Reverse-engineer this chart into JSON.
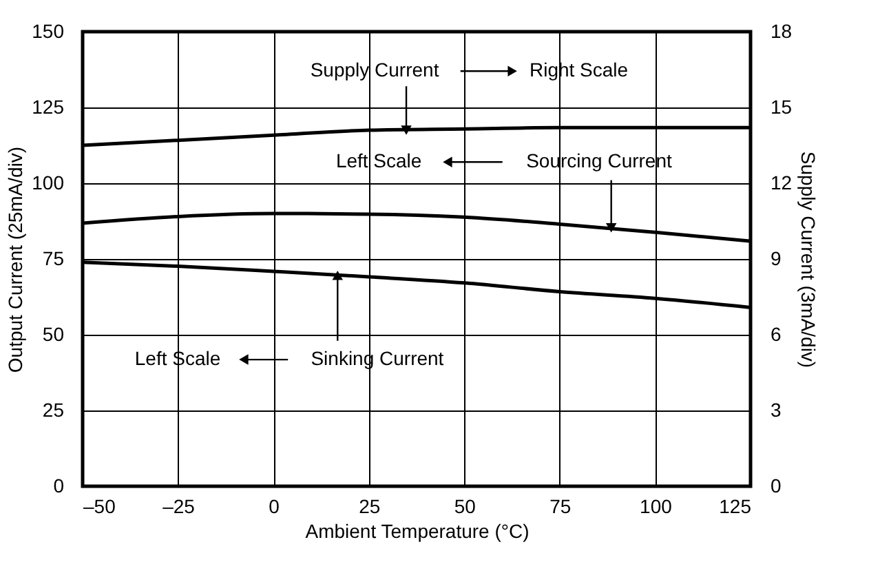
{
  "chart_data": {
    "type": "line",
    "xlabel": "Ambient Temperature (°C)",
    "ylabel": "Output Current (25mA/div)",
    "y2label": "Supply Current (3mA/div)",
    "x": [
      -50,
      -25,
      0,
      25,
      50,
      75,
      100,
      125
    ],
    "series": [
      {
        "color": "#000000",
        "axis": "y2",
        "values": [
          13.5,
          13.7,
          13.9,
          14.1,
          14.15,
          14.2,
          14.2,
          14.2
        ]
      },
      {
        "color": "#000000",
        "values": [
          86.8,
          89,
          90,
          89.8,
          88.8,
          86.5,
          83.8,
          80.9
        ]
      },
      {
        "color": "#000000",
        "values": [
          73.9,
          72.6,
          70.9,
          69.1,
          67.1,
          64.2,
          62,
          59
        ]
      }
    ],
    "xlim": [
      -50,
      125
    ],
    "xticks": [
      {
        "value": -50,
        "label": "–50"
      },
      {
        "value": -25,
        "label": "–25"
      },
      0,
      25,
      50,
      75,
      100,
      125
    ],
    "ylim": [
      0,
      150
    ],
    "yticks": [
      0,
      25,
      50,
      75,
      100,
      125,
      150
    ],
    "y2lim": [
      0,
      18
    ],
    "y2ticks": [
      0,
      3,
      6,
      9,
      12,
      15,
      18
    ],
    "annotations": [
      {
        "text": "Supply Current",
        "x": 34.8,
        "y": 117.5
      },
      "Right Scale",
      "Left Scale",
      {
        "text": "Sourcing Current",
        "x": 88.5,
        "y": 85.3
      },
      "Left Scale",
      {
        "text": "Sinking Current",
        "x": 16.8,
        "y": 69.6
      }
    ],
    "grid": true,
    "marker": "none",
    "line_style": "solid"
  }
}
